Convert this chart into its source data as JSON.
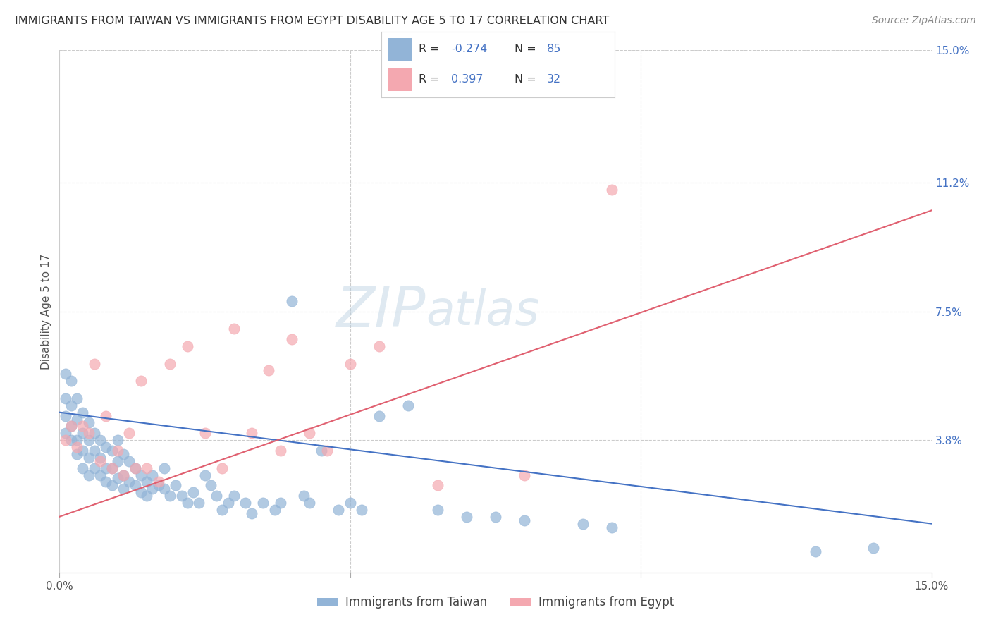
{
  "title": "IMMIGRANTS FROM TAIWAN VS IMMIGRANTS FROM EGYPT DISABILITY AGE 5 TO 17 CORRELATION CHART",
  "source": "Source: ZipAtlas.com",
  "ylabel": "Disability Age 5 to 17",
  "x_min": 0.0,
  "x_max": 0.15,
  "y_min": 0.0,
  "y_max": 0.15,
  "taiwan_color": "#92b4d7",
  "egypt_color": "#f4a8b0",
  "taiwan_line_color": "#4472c4",
  "egypt_line_color": "#e06070",
  "taiwan_R": -0.274,
  "taiwan_N": 85,
  "egypt_R": 0.397,
  "egypt_N": 32,
  "watermark_zip": "ZIP",
  "watermark_atlas": "atlas",
  "legend_taiwan": "Immigrants from Taiwan",
  "legend_egypt": "Immigrants from Egypt",
  "taiwan_line_x0": 0.0,
  "taiwan_line_y0": 0.046,
  "taiwan_line_x1": 0.15,
  "taiwan_line_y1": 0.014,
  "egypt_line_x0": 0.0,
  "egypt_line_y0": 0.016,
  "egypt_line_x1": 0.15,
  "egypt_line_y1": 0.104,
  "taiwan_scatter_x": [
    0.001,
    0.001,
    0.001,
    0.001,
    0.002,
    0.002,
    0.002,
    0.002,
    0.003,
    0.003,
    0.003,
    0.003,
    0.004,
    0.004,
    0.004,
    0.004,
    0.005,
    0.005,
    0.005,
    0.005,
    0.006,
    0.006,
    0.006,
    0.007,
    0.007,
    0.007,
    0.008,
    0.008,
    0.008,
    0.009,
    0.009,
    0.009,
    0.01,
    0.01,
    0.01,
    0.011,
    0.011,
    0.011,
    0.012,
    0.012,
    0.013,
    0.013,
    0.014,
    0.014,
    0.015,
    0.015,
    0.016,
    0.016,
    0.017,
    0.018,
    0.018,
    0.019,
    0.02,
    0.021,
    0.022,
    0.023,
    0.024,
    0.025,
    0.026,
    0.027,
    0.028,
    0.029,
    0.03,
    0.032,
    0.033,
    0.035,
    0.037,
    0.038,
    0.04,
    0.042,
    0.043,
    0.045,
    0.048,
    0.05,
    0.052,
    0.055,
    0.06,
    0.065,
    0.07,
    0.075,
    0.08,
    0.09,
    0.095,
    0.13,
    0.14
  ],
  "taiwan_scatter_y": [
    0.057,
    0.05,
    0.045,
    0.04,
    0.055,
    0.048,
    0.042,
    0.038,
    0.05,
    0.044,
    0.038,
    0.034,
    0.046,
    0.04,
    0.035,
    0.03,
    0.043,
    0.038,
    0.033,
    0.028,
    0.04,
    0.035,
    0.03,
    0.038,
    0.033,
    0.028,
    0.036,
    0.03,
    0.026,
    0.035,
    0.03,
    0.025,
    0.038,
    0.032,
    0.027,
    0.034,
    0.028,
    0.024,
    0.032,
    0.026,
    0.03,
    0.025,
    0.028,
    0.023,
    0.026,
    0.022,
    0.028,
    0.024,
    0.025,
    0.03,
    0.024,
    0.022,
    0.025,
    0.022,
    0.02,
    0.023,
    0.02,
    0.028,
    0.025,
    0.022,
    0.018,
    0.02,
    0.022,
    0.02,
    0.017,
    0.02,
    0.018,
    0.02,
    0.078,
    0.022,
    0.02,
    0.035,
    0.018,
    0.02,
    0.018,
    0.045,
    0.048,
    0.018,
    0.016,
    0.016,
    0.015,
    0.014,
    0.013,
    0.006,
    0.007
  ],
  "egypt_scatter_x": [
    0.001,
    0.002,
    0.003,
    0.004,
    0.005,
    0.006,
    0.007,
    0.008,
    0.009,
    0.01,
    0.011,
    0.012,
    0.013,
    0.014,
    0.015,
    0.017,
    0.019,
    0.022,
    0.025,
    0.028,
    0.03,
    0.033,
    0.036,
    0.038,
    0.04,
    0.043,
    0.046,
    0.05,
    0.055,
    0.065,
    0.08,
    0.095
  ],
  "egypt_scatter_y": [
    0.038,
    0.042,
    0.036,
    0.042,
    0.04,
    0.06,
    0.032,
    0.045,
    0.03,
    0.035,
    0.028,
    0.04,
    0.03,
    0.055,
    0.03,
    0.026,
    0.06,
    0.065,
    0.04,
    0.03,
    0.07,
    0.04,
    0.058,
    0.035,
    0.067,
    0.04,
    0.035,
    0.06,
    0.065,
    0.025,
    0.028,
    0.11
  ]
}
